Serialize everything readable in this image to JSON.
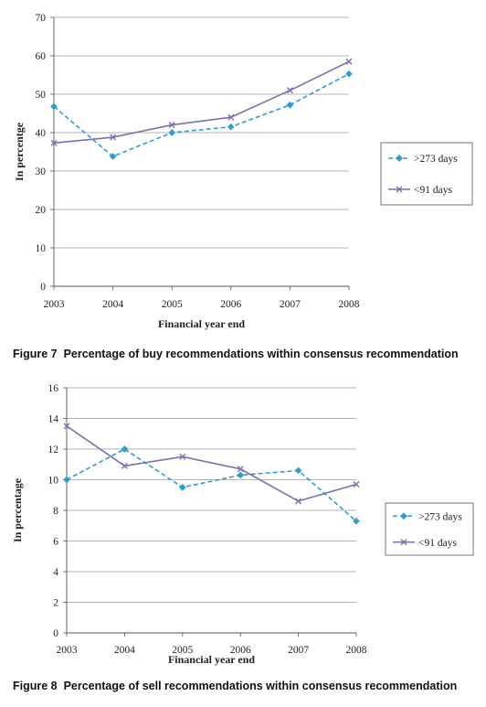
{
  "colors": {
    "series_273": "#2E9BD1",
    "series_91": "#7B6FB0",
    "grid": "#9a9a9a",
    "axis": "#555555",
    "legend_border": "#555555"
  },
  "captions": [
    {
      "number": "Figure 7",
      "text": "Percentage of buy recommendations within consensus recommendation"
    },
    {
      "number": "Figure 8",
      "text": "Percentage of sell recommendations within consensus recommendation"
    }
  ],
  "chart_data": [
    {
      "type": "line",
      "title": "",
      "xlabel": "Financial year end",
      "ylabel": "In percentge",
      "categories": [
        "2003",
        "2004",
        "2005",
        "2006",
        "2007",
        "2008"
      ],
      "ylim": [
        0,
        70
      ],
      "yticks": [
        0,
        10,
        20,
        30,
        40,
        50,
        60,
        70
      ],
      "grid": true,
      "legend_position": "right",
      "series": [
        {
          "name": ">273 days",
          "marker": "diamond",
          "dash": "dashed",
          "values": [
            46.8,
            33.8,
            40.0,
            41.5,
            47.2,
            55.3
          ]
        },
        {
          "name": "<91 days",
          "marker": "x",
          "dash": "solid",
          "values": [
            37.3,
            38.8,
            42.0,
            44.0,
            51.0,
            58.5
          ]
        }
      ]
    },
    {
      "type": "line",
      "title": "",
      "xlabel": "Financial year end",
      "ylabel": "In percentage",
      "categories": [
        "2003",
        "2004",
        "2005",
        "2006",
        "2007",
        "2008"
      ],
      "ylim": [
        0,
        16
      ],
      "yticks": [
        0,
        2,
        4,
        6,
        8,
        10,
        12,
        14,
        16
      ],
      "grid": true,
      "legend_position": "right",
      "series": [
        {
          "name": ">273 days",
          "marker": "diamond",
          "dash": "dashed",
          "values": [
            10.0,
            12.0,
            9.5,
            10.3,
            10.6,
            7.3
          ]
        },
        {
          "name": "<91 days",
          "marker": "x",
          "dash": "solid",
          "values": [
            13.5,
            10.9,
            11.5,
            10.7,
            8.6,
            9.7
          ]
        }
      ]
    }
  ]
}
